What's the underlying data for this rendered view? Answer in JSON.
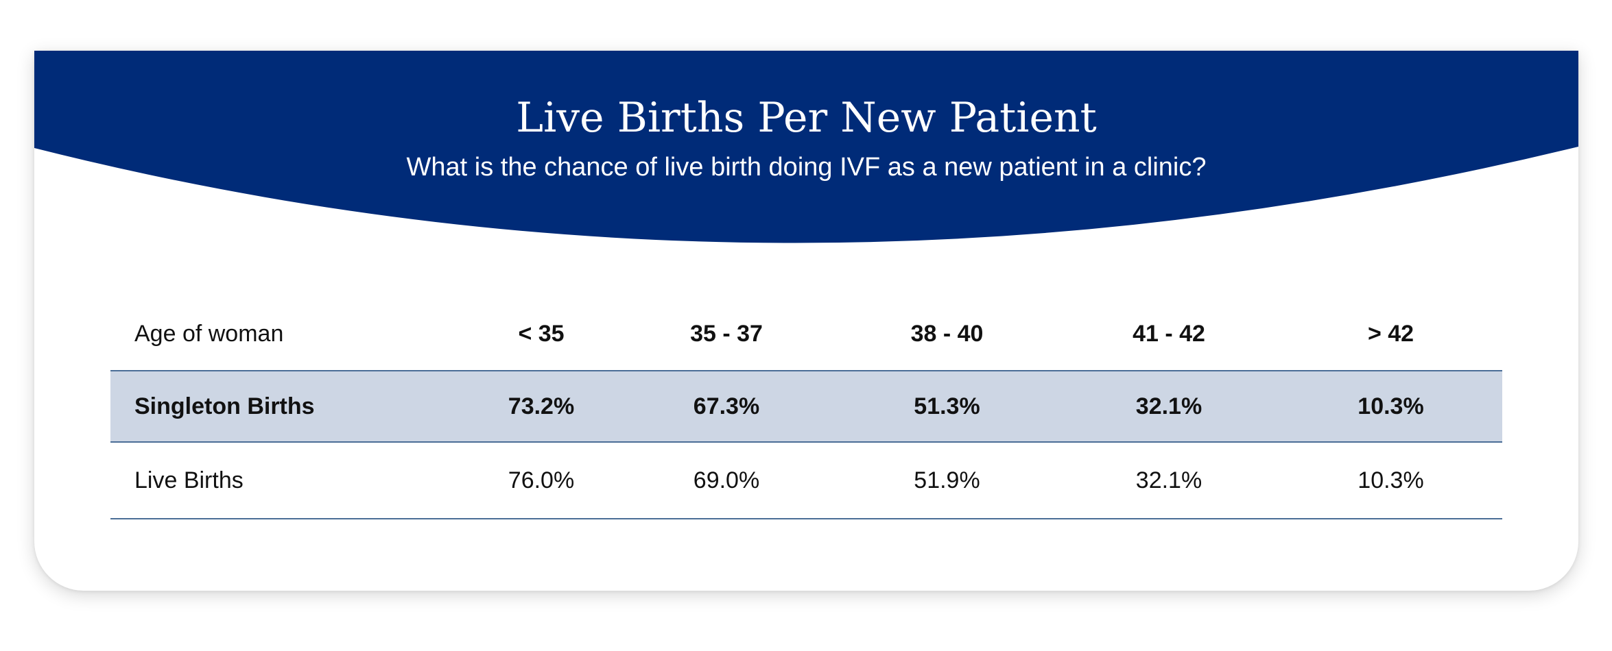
{
  "header": {
    "title": "Live Births Per New Patient",
    "subtitle": "What is the chance of live birth doing IVF as a new patient in a clinic?"
  },
  "colors": {
    "banner": "#002b78",
    "highlight_row": "#cdd6e4",
    "rule": "#4a6d96"
  },
  "table": {
    "header": {
      "label": "Age of woman",
      "cols": [
        "< 35",
        "35 - 37",
        "38 - 40",
        "41 - 42",
        "> 42"
      ]
    },
    "rows": [
      {
        "label": "Singleton Births",
        "values": [
          "73.2%",
          "67.3%",
          "51.3%",
          "32.1%",
          "10.3%"
        ]
      },
      {
        "label": "Live Births",
        "values": [
          "76.0%",
          "69.0%",
          "51.9%",
          "32.1%",
          "10.3%"
        ]
      }
    ]
  }
}
